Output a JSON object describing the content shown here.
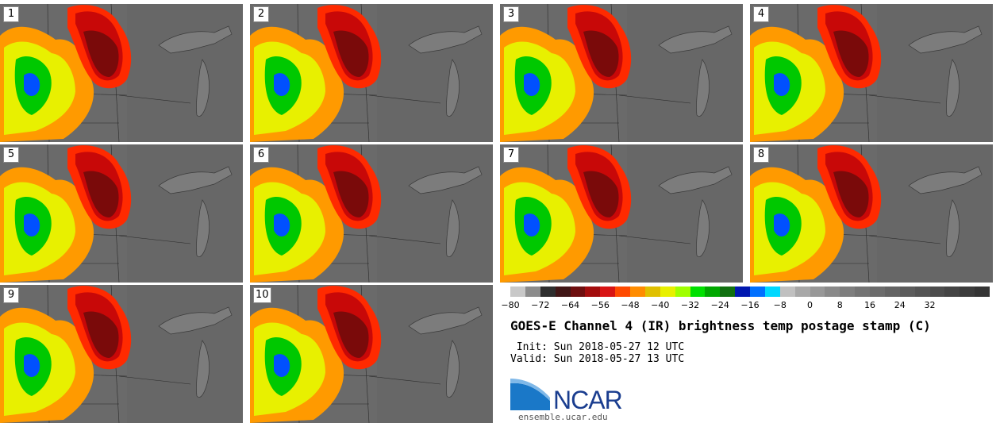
{
  "panels": [
    {
      "label": "1"
    },
    {
      "label": "2"
    },
    {
      "label": "3"
    },
    {
      "label": "4"
    },
    {
      "label": "5"
    },
    {
      "label": "6"
    },
    {
      "label": "7"
    },
    {
      "label": "8"
    },
    {
      "label": "9"
    },
    {
      "label": "10"
    }
  ],
  "colorbar": {
    "colors": [
      "#c8c8c8",
      "#8c8c8c",
      "#2e2e2e",
      "#401616",
      "#6e0e0e",
      "#a30c0c",
      "#d81414",
      "#ff4a00",
      "#ff8c00",
      "#e0c000",
      "#e8f000",
      "#a0ff00",
      "#00e000",
      "#00a800",
      "#107010",
      "#0018b0",
      "#0070ff",
      "#00d8ff",
      "#c0c0c0",
      "#a8a8a8",
      "#989898",
      "#8a8a8a",
      "#7e7e7e",
      "#747474",
      "#6c6c6c",
      "#646464",
      "#5c5c5c",
      "#545454",
      "#4c4c4c",
      "#444444",
      "#3c3c3c",
      "#343434"
    ],
    "ticks": [
      "−80",
      "−72",
      "−64",
      "−56",
      "−48",
      "−40",
      "−32",
      "−24",
      "−16",
      "−8",
      "0",
      "8",
      "16",
      "24",
      "32"
    ]
  },
  "title": "GOES-E Channel 4 (IR) brightness temp postage stamp (C)",
  "init": " Init: Sun 2018-05-27 12 UTC",
  "valid": "Valid: Sun 2018-05-27 13 UTC",
  "logo_text": "NCAR",
  "site": "ensemble.ucar.edu"
}
